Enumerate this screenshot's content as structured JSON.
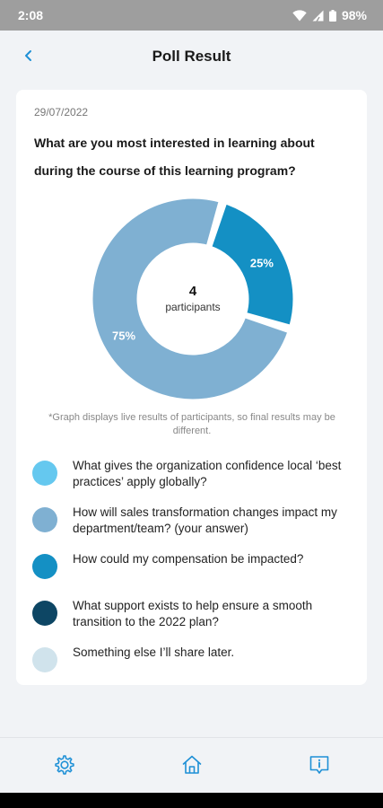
{
  "status_bar": {
    "time": "2:08",
    "battery": "98%"
  },
  "header": {
    "title": "Poll Result"
  },
  "poll": {
    "date": "29/07/2022",
    "question": "What are you most interested in learning about during the course of this learning program?",
    "participants_count": "4",
    "participants_label": "participants",
    "disclaimer": "*Graph displays live results of participants, so final results may be different."
  },
  "chart_data": {
    "type": "pie",
    "variant": "donut",
    "slices": [
      {
        "label": "25%",
        "value": 25,
        "color": "#1490c4"
      },
      {
        "label": "75%",
        "value": 75,
        "color": "#7fb0d2"
      }
    ]
  },
  "legend": [
    {
      "label": "What gives the organization confidence local ‘best practices’ apply globally?",
      "color": "#65c8ef"
    },
    {
      "label": "How will sales transformation changes impact my department/team? (your answer)",
      "color": "#7fb0d2"
    },
    {
      "label": "How could my compensation be impacted?",
      "color": "#1490c4"
    },
    {
      "label": "What support exists to help ensure a smooth transition to the 2022 plan?",
      "color": "#0d4664"
    },
    {
      "label": "Something else I’ll share later.",
      "color": "#d0e3ec"
    }
  ],
  "nav": {
    "icons": [
      "settings-icon",
      "home-icon",
      "info-icon"
    ]
  }
}
